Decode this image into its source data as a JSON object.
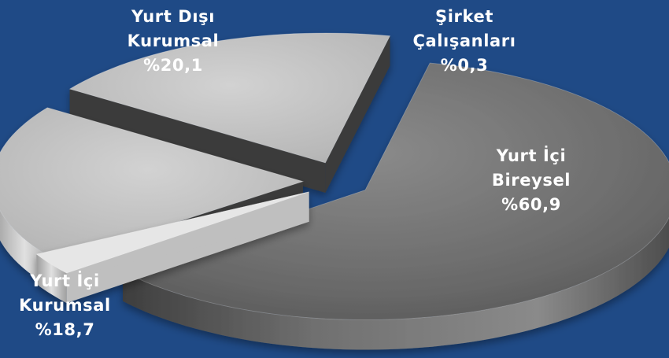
{
  "colors": {
    "background": "#1f4a86",
    "dark_slice": "#6c6c6c",
    "light_slice": "#bdbdbd"
  },
  "chart_data": {
    "type": "pie",
    "three_d": true,
    "exploded": true,
    "categories": [
      "Yurt İçi Bireysel",
      "Şirket Çalışanları",
      "Yurt Dışı Kurumsal",
      "Yurt İçi Kurumsal"
    ],
    "values": [
      60.9,
      0.3,
      20.1,
      18.7
    ],
    "labels": [
      {
        "line1": "Yurt İçi",
        "line2": "Bireysel",
        "pct": "%60,9"
      },
      {
        "line1": "Şirket",
        "line2": "Çalışanları",
        "pct": "%0,3"
      },
      {
        "line1": "Yurt Dışı",
        "line2": "Kurumsal",
        "pct": "%20,1"
      },
      {
        "line1": "Yurt İçi",
        "line2": "Kurumsal",
        "pct": "%18,7"
      }
    ]
  }
}
